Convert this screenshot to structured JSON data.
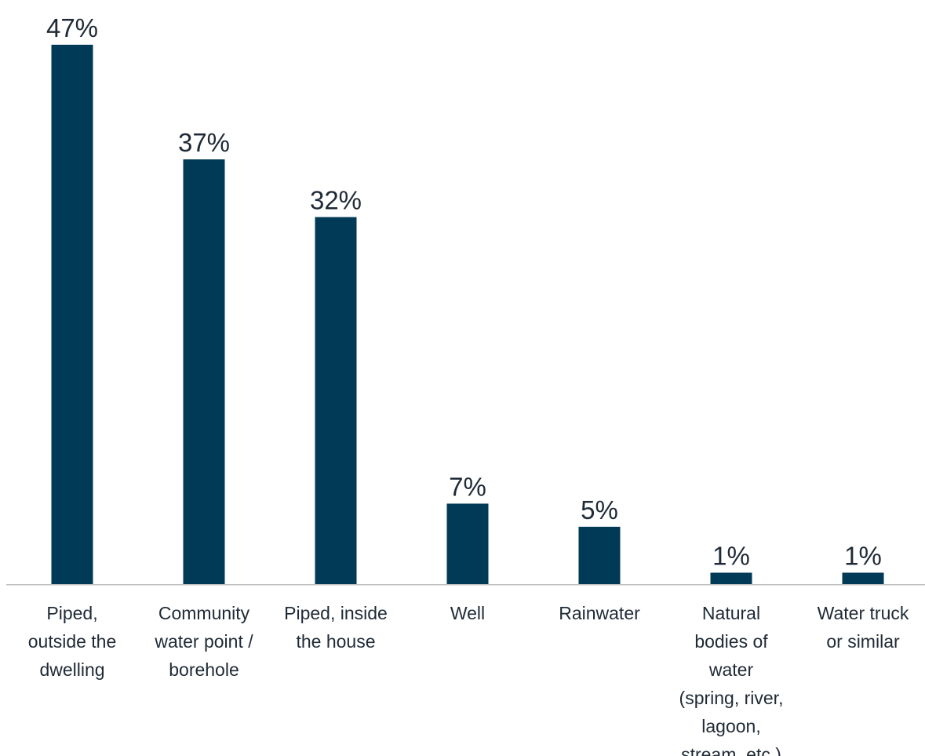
{
  "chart_data": {
    "type": "bar",
    "categories": [
      [
        "Piped,",
        "outside the",
        "dwelling"
      ],
      [
        "Community",
        "water point /",
        "borehole"
      ],
      [
        "Piped, inside",
        "the house"
      ],
      [
        "Well"
      ],
      [
        "Rainwater"
      ],
      [
        "Natural",
        "bodies of",
        "water",
        "(spring, river,",
        "lagoon,",
        "stream, etc.)"
      ],
      [
        "Water truck",
        "or similar"
      ]
    ],
    "values": [
      47,
      37,
      32,
      7,
      5,
      1,
      1
    ],
    "value_labels": [
      "47%",
      "37%",
      "32%",
      "7%",
      "5%",
      "1%",
      "1%"
    ],
    "ylim": [
      0,
      47
    ],
    "grid": false,
    "bar_color": "#003a56",
    "axis_color": "#bfbfbf",
    "text_color": "#1f2a36"
  }
}
